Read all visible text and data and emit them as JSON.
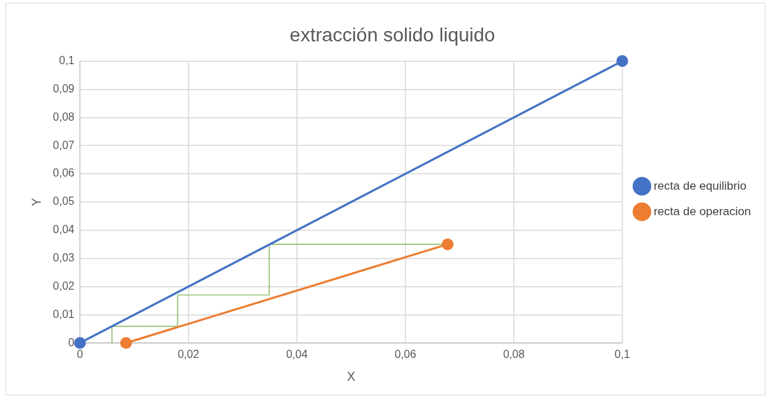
{
  "chart_data": {
    "type": "line",
    "title": "extracción solido liquido",
    "xlabel": "X",
    "ylabel": "Y",
    "xlim": [
      0,
      0.1
    ],
    "xticks": [
      0,
      {
        "value": 0.02,
        "label": "0,02"
      },
      {
        "value": 0.04,
        "label": "0,04"
      },
      {
        "value": 0.06,
        "label": "0,06"
      },
      {
        "value": 0.08,
        "label": "0,08"
      },
      {
        "value": 0.1,
        "label": "0,1"
      }
    ],
    "ylim": [
      0,
      0.1
    ],
    "yticks": [
      0,
      {
        "value": 0.01,
        "label": "0,01"
      },
      {
        "value": 0.02,
        "label": "0,02"
      },
      {
        "value": 0.03,
        "label": "0,03"
      },
      {
        "value": 0.04,
        "label": "0,04"
      },
      {
        "value": 0.05,
        "label": "0,05"
      },
      {
        "value": 0.06,
        "label": "0,06"
      },
      {
        "value": 0.07,
        "label": "0,07"
      },
      {
        "value": 0.08,
        "label": "0,08"
      },
      {
        "value": 0.09,
        "label": "0,09"
      },
      {
        "value": 0.1,
        "label": "0,1"
      }
    ],
    "grid": true,
    "legend": "right",
    "marker": "circle",
    "series": [
      {
        "name": "recta de equilibrio",
        "color": "#4472c4",
        "x": [
          0,
          0.1
        ],
        "values": [
          0,
          0.1
        ]
      },
      {
        "name": "recta de operacion",
        "color": "#ed7d31",
        "x": [
          0.0085,
          0.0678
        ],
        "values": [
          0,
          0.035
        ]
      },
      {
        "color": "#70ad47",
        "marker": "none",
        "x": [
          0.0678,
          0.0349,
          0.0349,
          0.018,
          0.018,
          0.0059,
          0.0059
        ],
        "values": [
          0.035,
          0.035,
          0.017,
          0.017,
          0.0059,
          0.0059,
          0
        ]
      }
    ]
  }
}
